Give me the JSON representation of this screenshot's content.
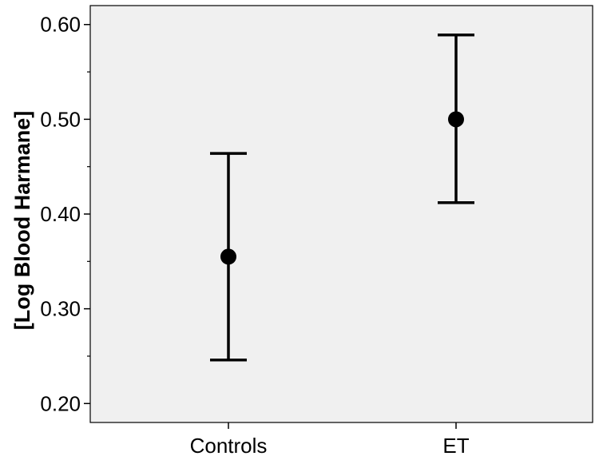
{
  "chart_data": {
    "type": "errorbar",
    "categories": [
      "Controls",
      "ET"
    ],
    "series": [
      {
        "means": [
          0.355,
          0.5
        ],
        "lower": [
          0.246,
          0.412
        ],
        "upper": [
          0.464,
          0.589
        ]
      }
    ],
    "ylabel": "[Log Blood Harmane]",
    "xlabel": "",
    "ylim": [
      0.18,
      0.62
    ],
    "yticks": [
      "0.20",
      "0.30",
      "0.40",
      "0.50",
      "0.60"
    ],
    "ytick_values": [
      0.2,
      0.3,
      0.4,
      0.5,
      0.6
    ],
    "minor_ticks": [
      0.25,
      0.35,
      0.45,
      0.55
    ],
    "grid": false,
    "colors": {
      "plot_background": "#f0f0f0",
      "marks": "#000000"
    }
  }
}
